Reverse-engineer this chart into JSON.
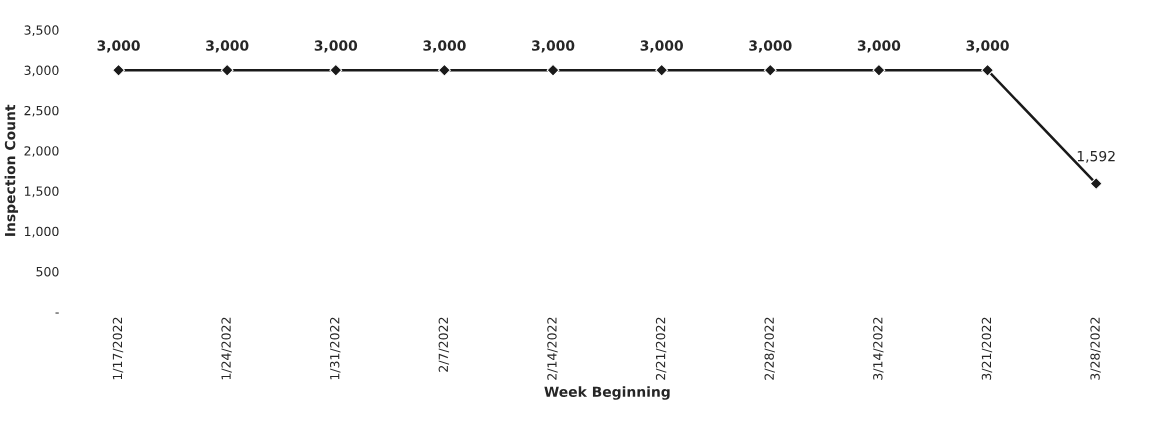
{
  "chart_data": {
    "type": "line",
    "xlabel": "Week Beginning",
    "ylabel": "Inspection Count",
    "categories": [
      "1/17/2022",
      "1/24/2022",
      "1/31/2022",
      "2/7/2022",
      "2/14/2022",
      "2/21/2022",
      "2/28/2022",
      "3/14/2022",
      "3/21/2022",
      "3/28/2022"
    ],
    "series": [
      {
        "color": "#1a1a1a",
        "values": [
          3000,
          3000,
          3000,
          3000,
          3000,
          3000,
          3000,
          3000,
          3000,
          1592
        ],
        "value_labels": [
          "3,000",
          "3,000",
          "3,000",
          "3,000",
          "3,000",
          "3,000",
          "3,000",
          "3,000",
          "3,000",
          "1,592"
        ]
      }
    ],
    "ylim": [
      0,
      3500
    ],
    "yticks": [
      {
        "value": 0,
        "label": "-"
      },
      500,
      {
        "value": 1000,
        "label": "1,000"
      },
      {
        "value": 1500,
        "label": "1,500"
      },
      {
        "value": 2000,
        "label": "2,000"
      },
      {
        "value": 2500,
        "label": "2,500"
      },
      {
        "value": 3000,
        "label": "3,000"
      },
      {
        "value": 3500,
        "label": "3,500"
      }
    ],
    "marker": "diamond",
    "line_style": "solid"
  }
}
